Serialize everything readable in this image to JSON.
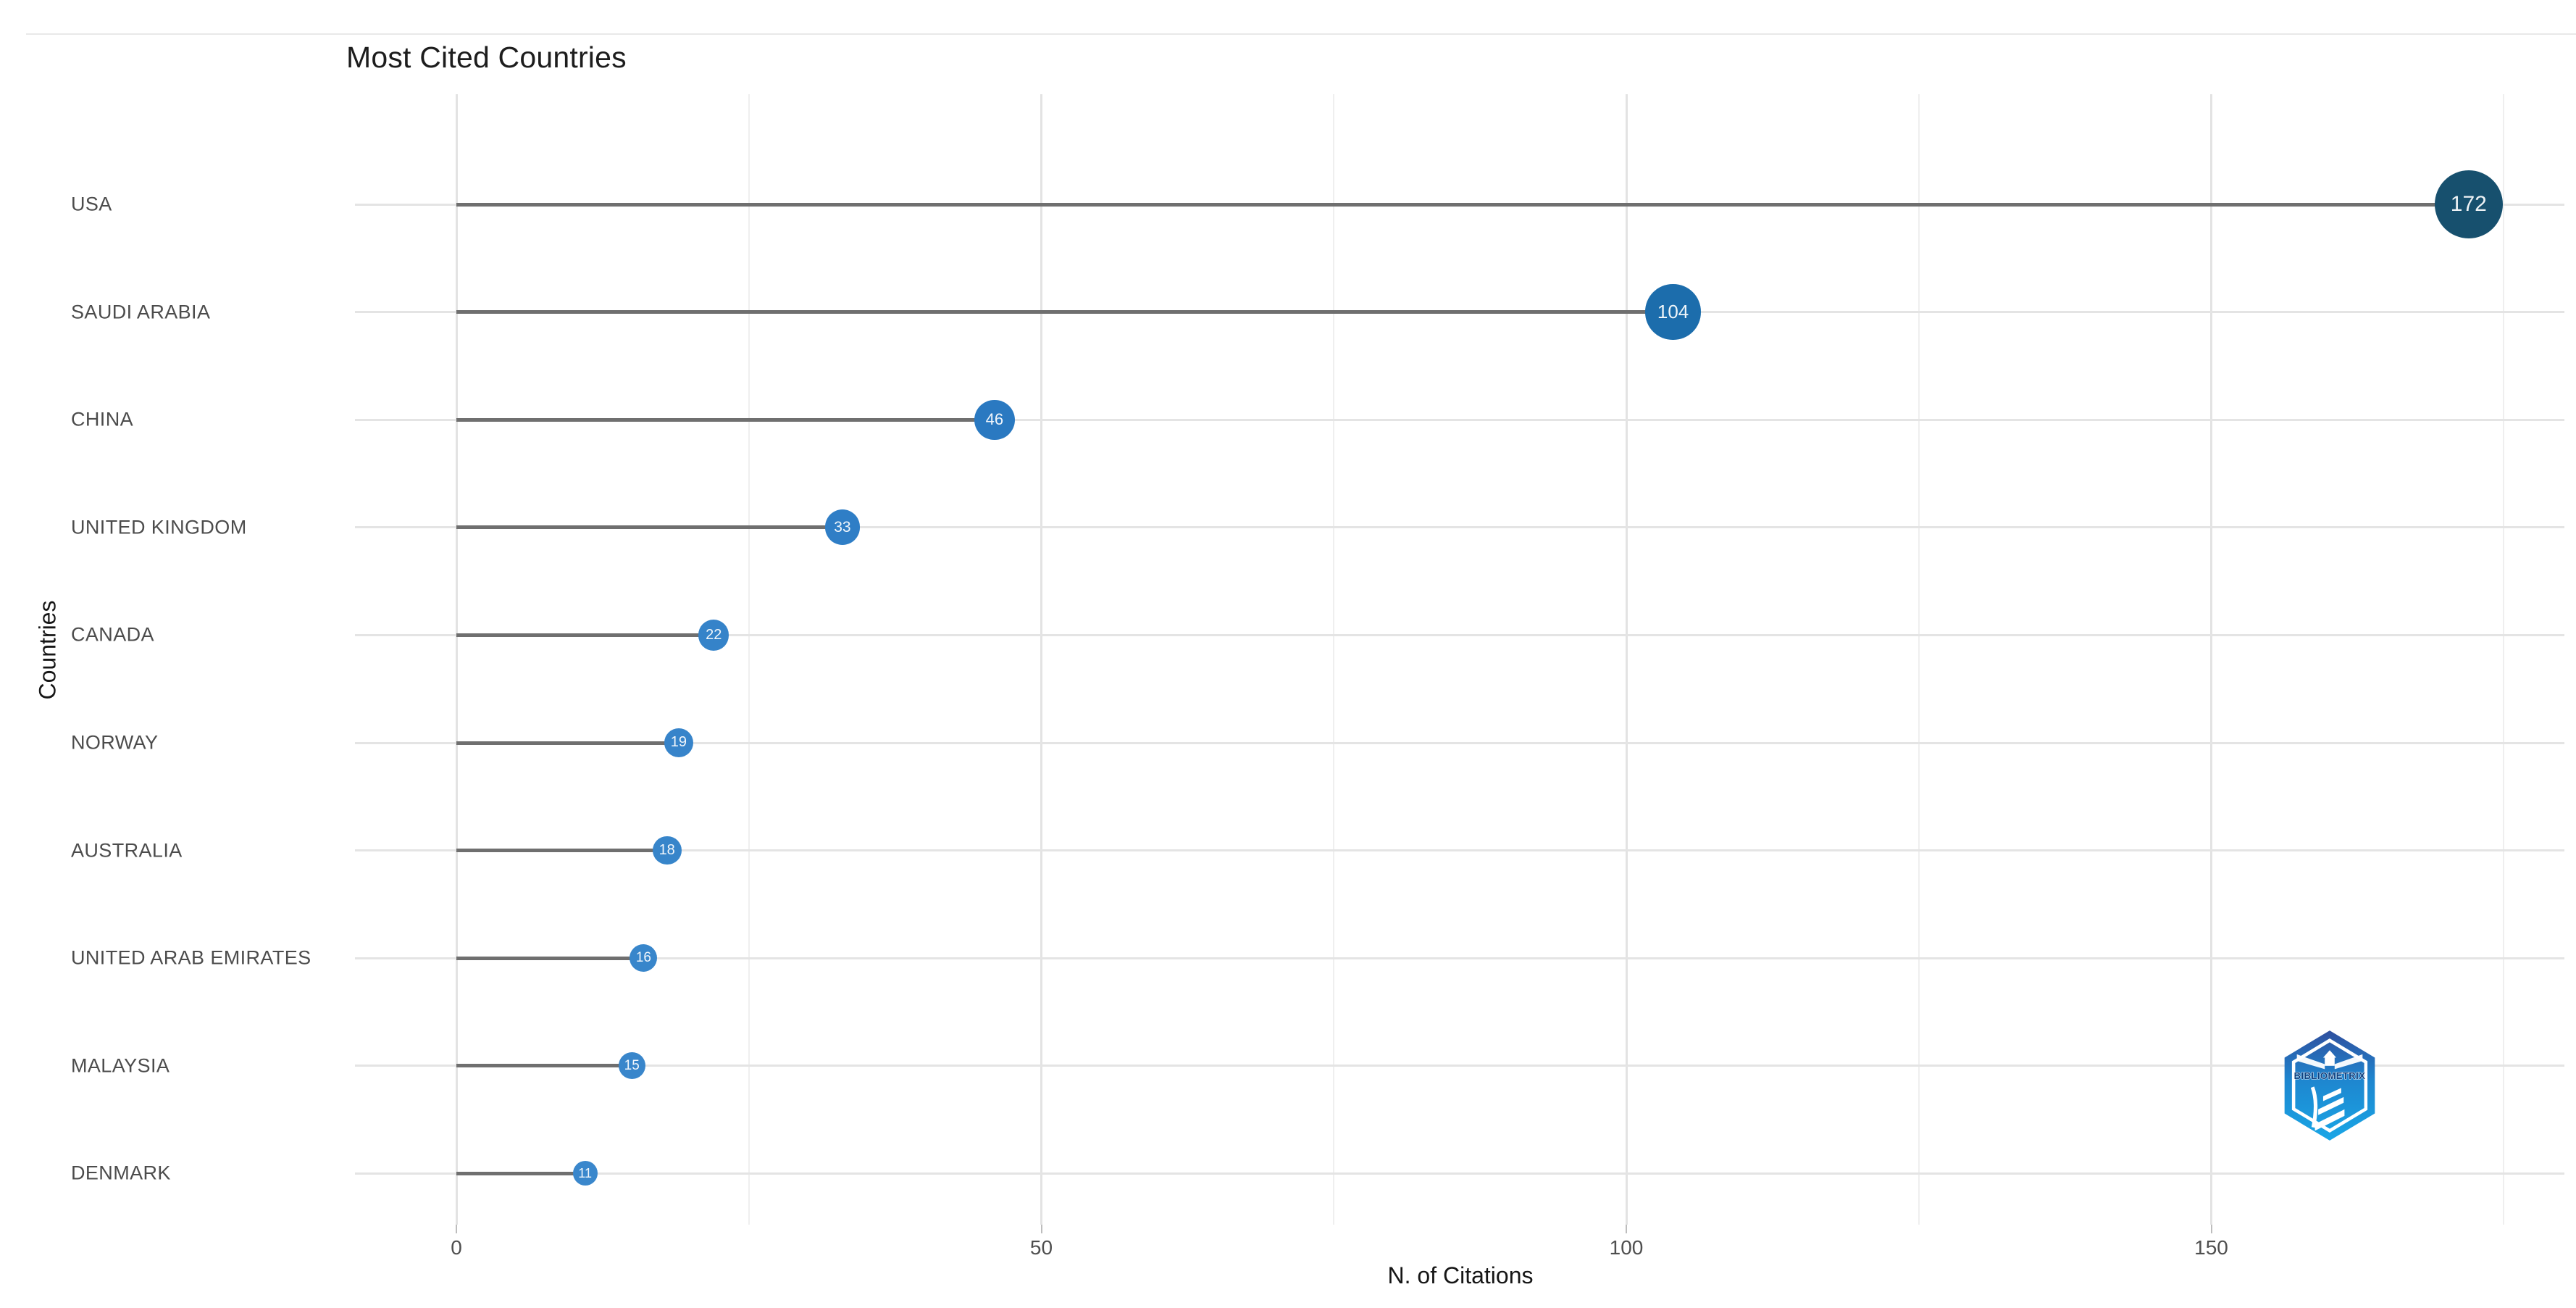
{
  "chart_data": {
    "type": "scatter",
    "variant": "lollipop",
    "title": "Most Cited Countries",
    "xlabel": "N. of Citations",
    "ylabel": "Countries",
    "categories": [
      "USA",
      "SAUDI ARABIA",
      "CHINA",
      "UNITED KINGDOM",
      "CANADA",
      "NORWAY",
      "AUSTRALIA",
      "UNITED ARAB EMIRATES",
      "MALAYSIA",
      "DENMARK"
    ],
    "values": [
      172,
      104,
      46,
      33,
      22,
      19,
      18,
      16,
      15,
      11
    ],
    "xlim": [
      -9,
      181
    ],
    "xticks": [
      0,
      50,
      100,
      150
    ],
    "xtick_labels": [
      "0",
      "50",
      "100",
      "150"
    ],
    "minor_xticks": [
      25,
      75,
      125,
      175
    ],
    "grid": "on",
    "legend": "none",
    "dot_colors": [
      "#17506E",
      "#1C6DAC",
      "#2A79C1",
      "#2F7EC6",
      "#3583C9",
      "#3784CA",
      "#3785CA",
      "#3886CB",
      "#3986CB",
      "#3A87CC"
    ],
    "stem_color": "#6f6f6f",
    "grid_color": "#e4e4e4",
    "value_text_color": "#ffffff"
  },
  "logo": {
    "name": "bibliometrix-logo",
    "text": "BIBLIOMETRIX"
  }
}
